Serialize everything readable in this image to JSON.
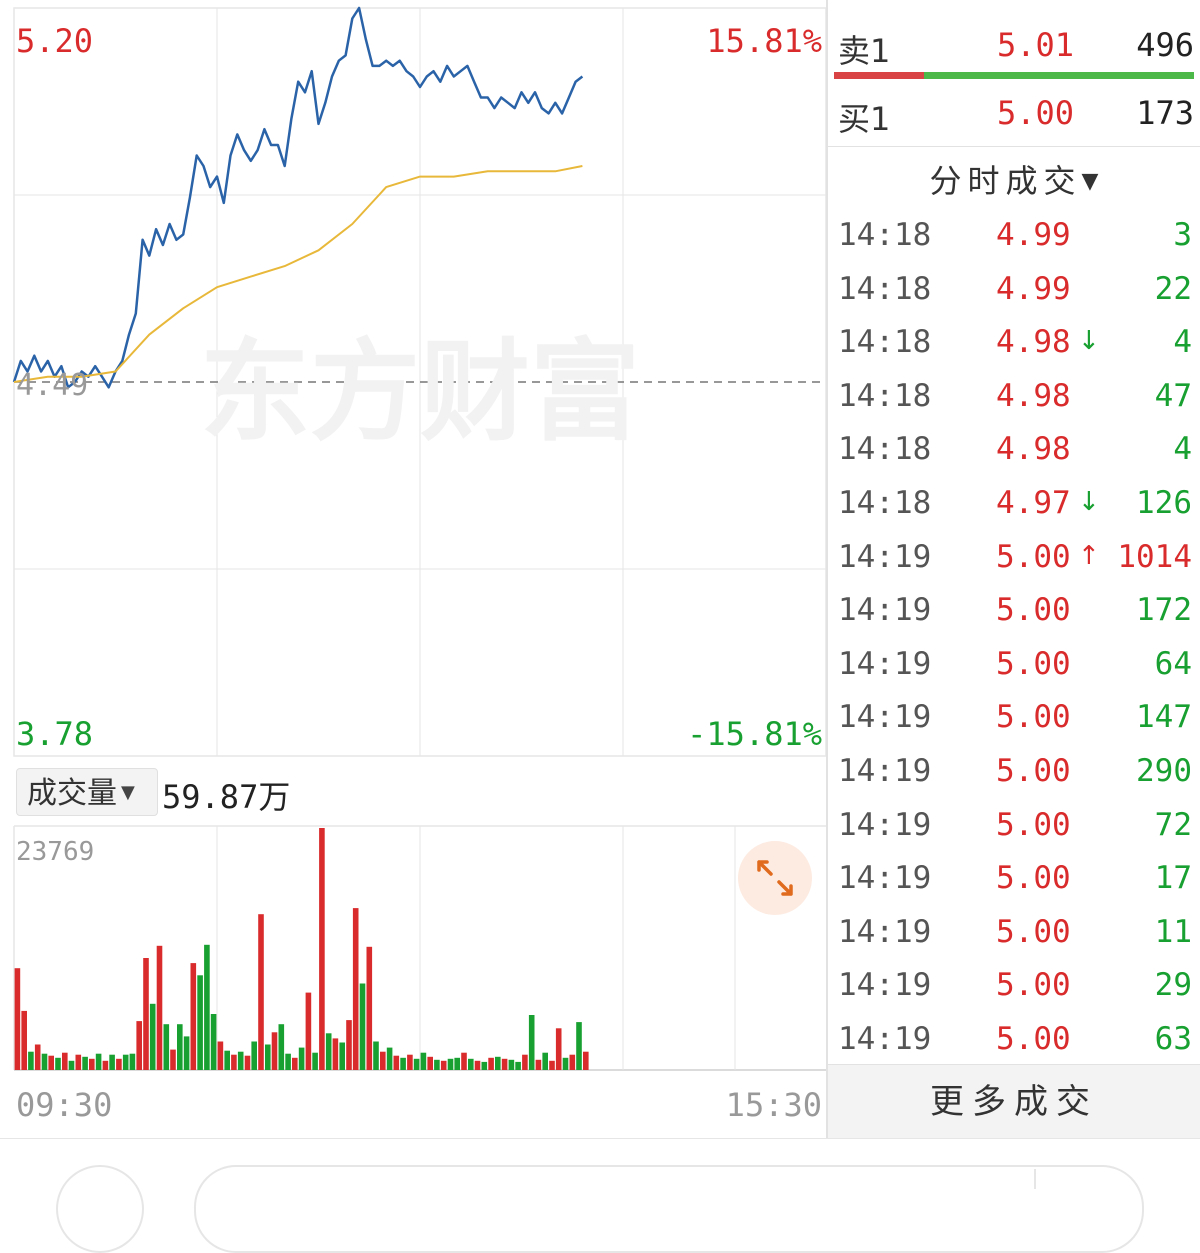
{
  "chart_data": [
    {
      "type": "line",
      "title": "",
      "price_axis": {
        "max_label": "5.20",
        "min_label": "3.78",
        "base_label": "4.49",
        "max_pct_label": "15.81%",
        "min_pct_label": "-15.81%",
        "ylim": [
          3.78,
          5.2
        ],
        "base": 4.49
      },
      "time_axis": {
        "start_label": "09:30",
        "end_label": "15:30"
      },
      "watermark": "东方财富",
      "series": [
        {
          "name": "",
          "color": "#2b63a8",
          "x": [
            0,
            2,
            4,
            6,
            8,
            10,
            12,
            14,
            16,
            18,
            20,
            22,
            24,
            26,
            28,
            30,
            32,
            34,
            36,
            38,
            40,
            42,
            44,
            46,
            48,
            50,
            52,
            54,
            56,
            58,
            60,
            62,
            64,
            66,
            68,
            70,
            72,
            74,
            76,
            78,
            80,
            82,
            84,
            86,
            88,
            90,
            92,
            94,
            96,
            98,
            100,
            102,
            104,
            106,
            108,
            110,
            112,
            114,
            116,
            118,
            120,
            122,
            124,
            126,
            128,
            130,
            132,
            134,
            136,
            138,
            140,
            142,
            144,
            146,
            148,
            150,
            152,
            154,
            156,
            158,
            160,
            162,
            164,
            166,
            168
          ],
          "y": [
            4.49,
            4.53,
            4.51,
            4.54,
            4.51,
            4.53,
            4.5,
            4.52,
            4.48,
            4.49,
            4.51,
            4.5,
            4.52,
            4.5,
            4.48,
            4.51,
            4.53,
            4.58,
            4.62,
            4.76,
            4.73,
            4.78,
            4.75,
            4.79,
            4.76,
            4.77,
            4.84,
            4.92,
            4.9,
            4.86,
            4.88,
            4.83,
            4.92,
            4.96,
            4.93,
            4.91,
            4.93,
            4.97,
            4.94,
            4.94,
            4.9,
            4.99,
            5.06,
            5.04,
            5.08,
            4.98,
            5.02,
            5.07,
            5.1,
            5.11,
            5.18,
            5.2,
            5.14,
            5.09,
            5.09,
            5.1,
            5.09,
            5.1,
            5.08,
            5.07,
            5.05,
            5.07,
            5.08,
            5.06,
            5.09,
            5.07,
            5.08,
            5.09,
            5.06,
            5.03,
            5.03,
            5.01,
            5.03,
            5.02,
            5.01,
            5.04,
            5.02,
            5.04,
            5.01,
            5.0,
            5.02,
            5.0,
            5.03,
            5.06,
            5.07
          ]
        },
        {
          "name": "",
          "color": "#e8b83a",
          "x": [
            0,
            10,
            20,
            30,
            40,
            50,
            60,
            70,
            80,
            90,
            100,
            110,
            120,
            130,
            140,
            150,
            160,
            168
          ],
          "y": [
            4.49,
            4.5,
            4.5,
            4.51,
            4.58,
            4.63,
            4.67,
            4.69,
            4.71,
            4.74,
            4.79,
            4.86,
            4.88,
            4.88,
            4.89,
            4.89,
            4.89,
            4.9
          ]
        }
      ]
    },
    {
      "type": "bar",
      "title": "",
      "selector_label": "成交量",
      "total_label": "59.87万",
      "max_label": "23769",
      "ylim": [
        0,
        23769
      ],
      "x": [
        0,
        2,
        4,
        6,
        8,
        10,
        12,
        14,
        16,
        18,
        20,
        22,
        24,
        26,
        28,
        30,
        32,
        34,
        36,
        38,
        40,
        42,
        44,
        46,
        48,
        50,
        52,
        54,
        56,
        58,
        60,
        62,
        64,
        66,
        68,
        70,
        72,
        74,
        76,
        78,
        80,
        82,
        84,
        86,
        88,
        90,
        92,
        94,
        96,
        98,
        100,
        102,
        104,
        106,
        108,
        110,
        112,
        114,
        116,
        118,
        120,
        122,
        124,
        126,
        128,
        130,
        132,
        134,
        136,
        138,
        140,
        142,
        144,
        146,
        148,
        150,
        152,
        154,
        156,
        158,
        160,
        162,
        164,
        166,
        168
      ],
      "values": [
        10000,
        5800,
        1800,
        2500,
        1600,
        1400,
        1200,
        1700,
        900,
        1500,
        1300,
        1100,
        1600,
        900,
        1500,
        1100,
        1500,
        1600,
        4800,
        11000,
        6500,
        12200,
        4500,
        2000,
        4500,
        3300,
        10500,
        9300,
        12300,
        5500,
        2800,
        1900,
        1500,
        1800,
        1400,
        2800,
        15300,
        2500,
        3700,
        4500,
        1600,
        1200,
        2200,
        7600,
        1700,
        23769,
        3600,
        3100,
        2700,
        4900,
        15900,
        8500,
        12100,
        2800,
        1800,
        2200,
        1400,
        1200,
        1500,
        1100,
        1700,
        1300,
        1000,
        900,
        1100,
        1200,
        1700,
        1100,
        900,
        800,
        1200,
        1300,
        1100,
        1000,
        800,
        1500,
        5400,
        1000,
        1700,
        900,
        4100,
        1200,
        1500,
        4700,
        1800
      ],
      "colors": [
        "r",
        "r",
        "g",
        "r",
        "g",
        "r",
        "g",
        "r",
        "g",
        "r",
        "g",
        "r",
        "g",
        "r",
        "g",
        "r",
        "g",
        "g",
        "r",
        "r",
        "g",
        "r",
        "g",
        "r",
        "g",
        "g",
        "r",
        "g",
        "g",
        "g",
        "r",
        "g",
        "r",
        "g",
        "r",
        "g",
        "r",
        "g",
        "r",
        "g",
        "g",
        "r",
        "g",
        "r",
        "g",
        "r",
        "g",
        "r",
        "g",
        "r",
        "r",
        "g",
        "r",
        "g",
        "r",
        "g",
        "r",
        "g",
        "r",
        "g",
        "g",
        "r",
        "g",
        "r",
        "g",
        "g",
        "r",
        "g",
        "r",
        "g",
        "r",
        "g",
        "r",
        "g",
        "g",
        "r",
        "g",
        "r",
        "g",
        "r",
        "r",
        "g",
        "r",
        "g",
        "r"
      ]
    }
  ],
  "quote": {
    "sell": {
      "label": "卖1",
      "price": "5.01",
      "volume": "496"
    },
    "buy": {
      "label": "买1",
      "price": "5.00",
      "volume": "173"
    },
    "sell_ratio": 0.25
  },
  "ticks": {
    "header": "分时成交",
    "rows": [
      {
        "time": "14:18",
        "price": "4.99",
        "arrow": "",
        "volume": "3",
        "color": "green"
      },
      {
        "time": "14:18",
        "price": "4.99",
        "arrow": "",
        "volume": "22",
        "color": "green"
      },
      {
        "time": "14:18",
        "price": "4.98",
        "arrow": "down",
        "volume": "4",
        "color": "green"
      },
      {
        "time": "14:18",
        "price": "4.98",
        "arrow": "",
        "volume": "47",
        "color": "green"
      },
      {
        "time": "14:18",
        "price": "4.98",
        "arrow": "",
        "volume": "4",
        "color": "green"
      },
      {
        "time": "14:18",
        "price": "4.97",
        "arrow": "down",
        "volume": "126",
        "color": "green"
      },
      {
        "time": "14:19",
        "price": "5.00",
        "arrow": "up",
        "volume": "1014",
        "color": "red"
      },
      {
        "time": "14:19",
        "price": "5.00",
        "arrow": "",
        "volume": "172",
        "color": "green"
      },
      {
        "time": "14:19",
        "price": "5.00",
        "arrow": "",
        "volume": "64",
        "color": "green"
      },
      {
        "time": "14:19",
        "price": "5.00",
        "arrow": "",
        "volume": "147",
        "color": "green"
      },
      {
        "time": "14:19",
        "price": "5.00",
        "arrow": "",
        "volume": "290",
        "color": "green"
      },
      {
        "time": "14:19",
        "price": "5.00",
        "arrow": "",
        "volume": "72",
        "color": "green"
      },
      {
        "time": "14:19",
        "price": "5.00",
        "arrow": "",
        "volume": "17",
        "color": "green"
      },
      {
        "time": "14:19",
        "price": "5.00",
        "arrow": "",
        "volume": "11",
        "color": "green"
      },
      {
        "time": "14:19",
        "price": "5.00",
        "arrow": "",
        "volume": "29",
        "color": "green"
      },
      {
        "time": "14:19",
        "price": "5.00",
        "arrow": "",
        "volume": "63",
        "color": "green"
      }
    ],
    "more_label": "更多成交"
  },
  "colors": {
    "up": "#d92b2b",
    "down": "#18a030",
    "price_line": "#2b63a8",
    "avg_line": "#e8b83a",
    "grid": "#e6e6e6"
  },
  "icons": {
    "expand": "expand-arrows-icon",
    "dropdown": "triangle-down-icon"
  }
}
